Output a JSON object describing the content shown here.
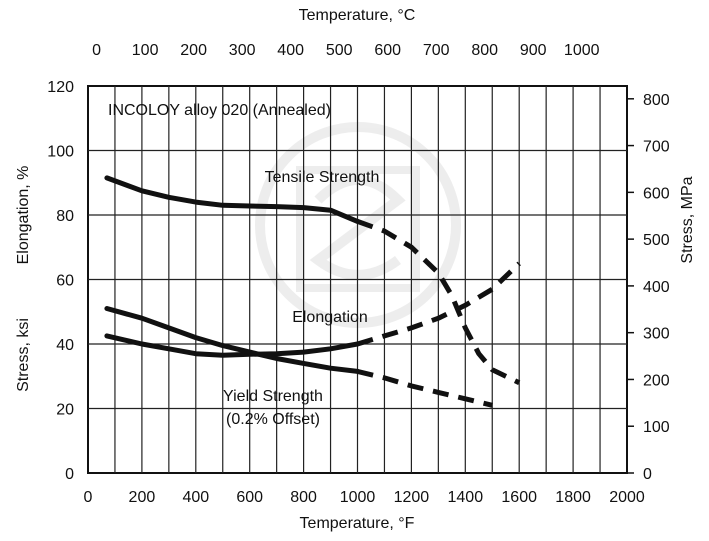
{
  "chart_data": {
    "type": "line",
    "title": "",
    "annotation": "INCOLOY alloy 020 (Annealed)",
    "x_bottom": {
      "label": "Temperature, °F",
      "range": [
        0,
        2000
      ],
      "ticks": [
        "0",
        "200",
        "400",
        "600",
        "800",
        "1000",
        "1200",
        "1400",
        "1600",
        "1800",
        "2000"
      ]
    },
    "x_top": {
      "label": "Temperature, °C",
      "ticks": [
        "0",
        "100",
        "200",
        "300",
        "400",
        "500",
        "600",
        "700",
        "800",
        "900",
        "1000"
      ]
    },
    "y_left": {
      "label_top": "Elongation, %",
      "label_bottom": "Stress, ksi",
      "range": [
        0,
        120
      ],
      "ticks": [
        "0",
        "20",
        "40",
        "60",
        "80",
        "100",
        "120"
      ]
    },
    "y_right": {
      "label": "Stress, MPa",
      "ticks": [
        "0",
        "100",
        "200",
        "300",
        "400",
        "500",
        "600",
        "700",
        "800"
      ]
    },
    "grid": true,
    "series": [
      {
        "name": "Tensile Strength",
        "label_lines": [
          "Tensile Strength"
        ],
        "solid": [
          [
            70,
            91.5
          ],
          [
            200,
            87.5
          ],
          [
            300,
            85.5
          ],
          [
            400,
            84
          ],
          [
            500,
            83
          ],
          [
            600,
            82.8
          ],
          [
            700,
            82.6
          ],
          [
            800,
            82.3
          ],
          [
            900,
            81.5
          ],
          [
            1000,
            78
          ]
        ],
        "dashed": [
          [
            1000,
            78
          ],
          [
            1100,
            75
          ],
          [
            1200,
            70
          ],
          [
            1300,
            62
          ],
          [
            1350,
            55
          ],
          [
            1400,
            45
          ],
          [
            1450,
            37
          ],
          [
            1500,
            32
          ],
          [
            1600,
            28
          ]
        ]
      },
      {
        "name": "Elongation",
        "label_lines": [
          "Elongation"
        ],
        "solid": [
          [
            70,
            42.5
          ],
          [
            200,
            40
          ],
          [
            300,
            38.5
          ],
          [
            400,
            37
          ],
          [
            500,
            36.5
          ],
          [
            600,
            36.8
          ],
          [
            700,
            37
          ],
          [
            800,
            37.5
          ],
          [
            900,
            38.5
          ],
          [
            1000,
            40
          ]
        ],
        "dashed": [
          [
            1000,
            40
          ],
          [
            1100,
            42.5
          ],
          [
            1200,
            45
          ],
          [
            1300,
            48
          ],
          [
            1400,
            52
          ],
          [
            1500,
            57
          ],
          [
            1600,
            65
          ]
        ]
      },
      {
        "name": "Yield Strength (0.2% Offset)",
        "label_lines": [
          "Yield Strength",
          "(0.2% Offset)"
        ],
        "solid": [
          [
            70,
            51
          ],
          [
            200,
            48
          ],
          [
            300,
            45
          ],
          [
            400,
            42
          ],
          [
            500,
            39.5
          ],
          [
            600,
            37.5
          ],
          [
            700,
            35.5
          ],
          [
            800,
            34
          ],
          [
            900,
            32.5
          ],
          [
            1000,
            31.5
          ]
        ],
        "dashed": [
          [
            1000,
            31.5
          ],
          [
            1100,
            29.5
          ],
          [
            1200,
            27
          ],
          [
            1300,
            25
          ],
          [
            1400,
            23
          ],
          [
            1500,
            21
          ]
        ]
      }
    ]
  }
}
